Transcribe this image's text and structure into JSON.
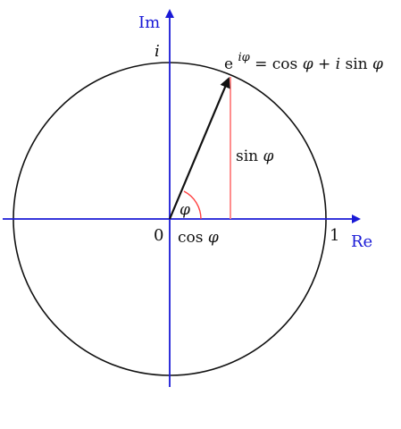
{
  "axes": {
    "imaginary_label": "Im",
    "real_label": "Re",
    "axis_color": "#1a1ad6"
  },
  "labels": {
    "i_tick": "i",
    "one_tick": "1",
    "origin": "0",
    "euler_base": "e",
    "euler_exponent": "iφ",
    "euler_rhs_a": " = cos ",
    "euler_rhs_phi1": "φ",
    "euler_rhs_b": " + ",
    "euler_rhs_i": "i",
    "euler_rhs_c": " sin ",
    "euler_rhs_phi2": "φ",
    "sin_text": "sin ",
    "sin_phi": "φ",
    "cos_text": "cos ",
    "cos_phi": "φ",
    "angle_phi": "φ"
  },
  "colors": {
    "circle": "#111111",
    "vector": "#111111",
    "sine_line": "#ff8080",
    "angle_arc": "#ff4040"
  },
  "angle_degrees": 63
}
